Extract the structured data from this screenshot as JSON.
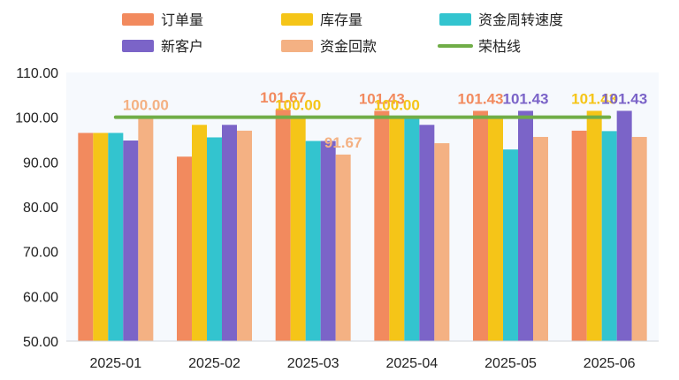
{
  "chart_data": {
    "type": "bar",
    "categories": [
      "2025-01",
      "2025-02",
      "2025-03",
      "2025-04",
      "2025-05",
      "2025-06"
    ],
    "series": [
      {
        "name": "订单量",
        "color": "#f28a5e",
        "values": [
          96.5,
          91.2,
          101.67,
          101.43,
          101.43,
          97.0
        ]
      },
      {
        "name": "库存量",
        "color": "#f5c518",
        "values": [
          96.5,
          98.3,
          100.0,
          100.0,
          100.0,
          101.43
        ]
      },
      {
        "name": "资金周转速度",
        "color": "#33c4cf",
        "values": [
          96.5,
          95.5,
          94.7,
          100.0,
          92.8,
          96.9
        ]
      },
      {
        "name": "新客户",
        "color": "#7b64c8",
        "values": [
          94.8,
          98.3,
          94.7,
          98.3,
          101.43,
          101.43
        ]
      },
      {
        "name": "资金回款",
        "color": "#f4b183",
        "values": [
          100.0,
          97.0,
          91.67,
          94.2,
          95.6,
          95.6
        ]
      }
    ],
    "line_series": {
      "name": "荣枯线",
      "color": "#70ad47",
      "value": 100.0
    },
    "data_labels": [
      {
        "category": "2025-01",
        "series": "资金回款",
        "text": "100.00",
        "color": "#f4b183",
        "bold": true
      },
      {
        "category": "2025-03",
        "series": "订单量",
        "text": "101.67",
        "color": "#f28a5e",
        "bold": true
      },
      {
        "category": "2025-03",
        "series": "库存量",
        "text": "100.00",
        "color": "#f5c518",
        "bold": true
      },
      {
        "category": "2025-03",
        "series": "资金回款",
        "text": "91.67",
        "color": "#f4b183",
        "bold": true
      },
      {
        "category": "2025-04",
        "series": "订单量",
        "text": "101.43",
        "color": "#f28a5e",
        "bold": true
      },
      {
        "category": "2025-04",
        "series": "库存量",
        "text": "100.00",
        "color": "#f5c518",
        "bold": true
      },
      {
        "category": "2025-05",
        "series": "订单量",
        "text": "101.43",
        "color": "#f28a5e",
        "bold": false
      },
      {
        "category": "2025-05",
        "series": "新客户",
        "text": "101.43",
        "color": "#7b64c8",
        "bold": true
      },
      {
        "category": "2025-06",
        "series": "库存量",
        "text": "101.43",
        "color": "#f5c518",
        "bold": true
      },
      {
        "category": "2025-06",
        "series": "新客户",
        "text": "101.43",
        "color": "#7b64c8",
        "bold": true
      }
    ],
    "yticks": [
      "50.00",
      "60.00",
      "70.00",
      "80.00",
      "90.00",
      "100.00",
      "110.00"
    ],
    "ylim": [
      50,
      110
    ],
    "title": "",
    "xlabel": "",
    "ylabel": "",
    "grid": false,
    "legend_position": "top"
  }
}
